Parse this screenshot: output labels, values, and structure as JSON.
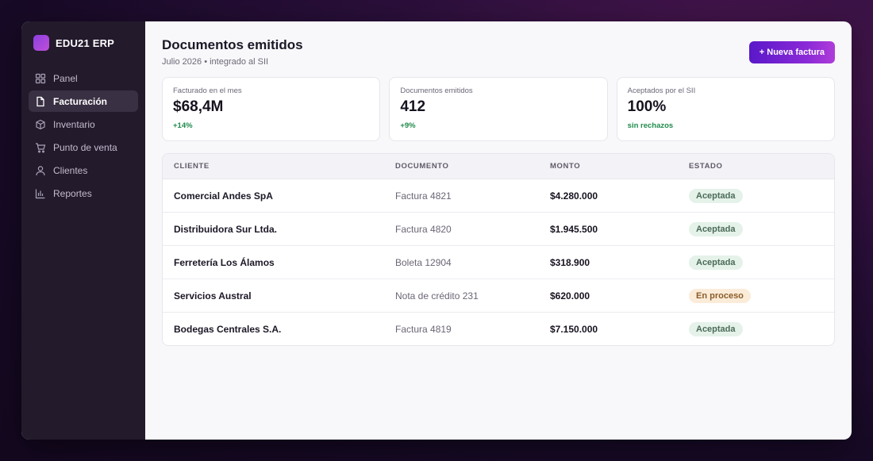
{
  "app": {
    "name": "EDU21 ERP"
  },
  "sidebar": {
    "items": [
      {
        "label": "Panel",
        "icon": "grid-icon",
        "active": false
      },
      {
        "label": "Facturación",
        "icon": "document-icon",
        "active": true
      },
      {
        "label": "Inventario",
        "icon": "box-icon",
        "active": false
      },
      {
        "label": "Punto de venta",
        "icon": "cart-icon",
        "active": false
      },
      {
        "label": "Clientes",
        "icon": "user-icon",
        "active": false
      },
      {
        "label": "Reportes",
        "icon": "bar-chart-icon",
        "active": false
      }
    ]
  },
  "header": {
    "title": "Documentos emitidos",
    "subtitle": "Julio 2026 • integrado al SII",
    "new_invoice_label": "+ Nueva factura"
  },
  "stats": [
    {
      "label": "Facturado en el mes",
      "value": "$68,4M",
      "delta": "+14%"
    },
    {
      "label": "Documentos emitidos",
      "value": "412",
      "delta": "+9%"
    },
    {
      "label": "Aceptados por el SII",
      "value": "100%",
      "delta": "sin rechazos"
    }
  ],
  "table": {
    "headers": [
      "CLIENTE",
      "DOCUMENTO",
      "MONTO",
      "ESTADO"
    ],
    "rows": [
      {
        "client": "Comercial Andes SpA",
        "document": "Factura 4821",
        "amount": "$4.280.000",
        "status": "Aceptada",
        "status_type": "ok"
      },
      {
        "client": "Distribuidora Sur Ltda.",
        "document": "Factura 4820",
        "amount": "$1.945.500",
        "status": "Aceptada",
        "status_type": "ok"
      },
      {
        "client": "Ferretería Los Álamos",
        "document": "Boleta 12904",
        "amount": "$318.900",
        "status": "Aceptada",
        "status_type": "ok"
      },
      {
        "client": "Servicios Austral",
        "document": "Nota de crédito 231",
        "amount": "$620.000",
        "status": "En proceso",
        "status_type": "proc"
      },
      {
        "client": "Bodegas Centrales S.A.",
        "document": "Factura 4819",
        "amount": "$7.150.000",
        "status": "Aceptada",
        "status_type": "ok"
      }
    ]
  },
  "colors": {
    "accent": "#7a24d6",
    "sidebar_bg": "#231a2c",
    "success": "#1f8a4c",
    "badge_ok_bg": "#e5f2ea",
    "badge_proc_bg": "#fbecd9"
  }
}
